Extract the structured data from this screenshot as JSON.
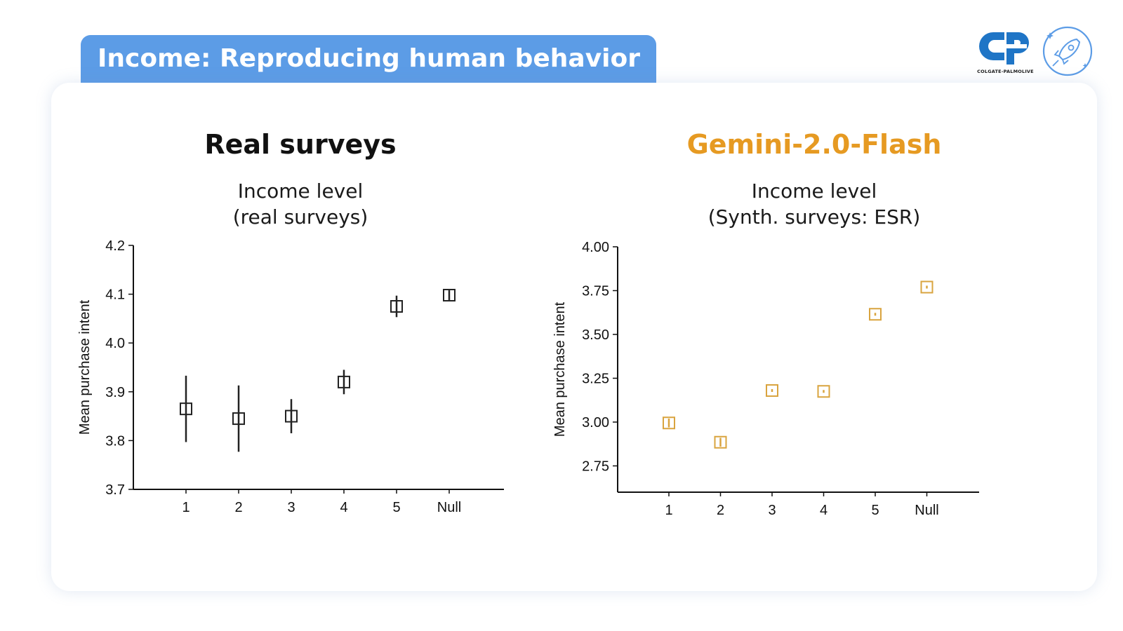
{
  "header": {
    "title": "Income: Reproducing human behavior"
  },
  "logos": {
    "colgate_text": "COLGATE-PALMOLIVE"
  },
  "colors": {
    "header_bg": "#5c9ce6",
    "accent_gemini": "#e69a22",
    "real_marker": "#222222",
    "gemini_marker": "#d9a43f"
  },
  "panels": {
    "left": {
      "title": "Real surveys",
      "subtitle_line1": "Income level",
      "subtitle_line2": "(real surveys)"
    },
    "right": {
      "title": "Gemini-2.0-Flash",
      "subtitle_line1": "Income level",
      "subtitle_line2": "(Synth. surveys: ESR)"
    }
  },
  "chart_data": [
    {
      "type": "scatter",
      "title": "Income level (real surveys)",
      "xlabel": "",
      "ylabel": "Mean purchase intent",
      "categories": [
        "1",
        "2",
        "3",
        "4",
        "5",
        "Null"
      ],
      "values": [
        3.865,
        3.845,
        3.85,
        3.92,
        4.075,
        4.098
      ],
      "err_low": [
        3.797,
        3.777,
        3.815,
        3.895,
        4.053,
        4.088
      ],
      "err_high": [
        3.933,
        3.913,
        3.885,
        3.945,
        4.097,
        4.108
      ],
      "ylim": [
        3.7,
        4.2
      ],
      "yticks": [
        3.7,
        3.8,
        3.9,
        4.0,
        4.1,
        4.2
      ],
      "ytick_labels": [
        "3.7",
        "3.8",
        "3.9",
        "4.0",
        "4.1",
        "4.2"
      ],
      "marker": "open-square",
      "color": "#222222",
      "grid": false
    },
    {
      "type": "scatter",
      "title": "Income level (Synth. surveys: ESR)",
      "xlabel": "",
      "ylabel": "Mean purchase intent",
      "categories": [
        "1",
        "2",
        "3",
        "4",
        "5",
        "Null"
      ],
      "values": [
        2.995,
        2.885,
        3.18,
        3.175,
        3.615,
        3.77
      ],
      "err_low": [
        2.97,
        2.86,
        3.172,
        3.167,
        3.607,
        3.762
      ],
      "err_high": [
        3.02,
        2.91,
        3.188,
        3.183,
        3.623,
        3.778
      ],
      "ylim": [
        2.6,
        4.0
      ],
      "yticks": [
        2.75,
        3.0,
        3.25,
        3.5,
        3.75,
        4.0
      ],
      "ytick_labels": [
        "2.75",
        "3.00",
        "3.25",
        "3.50",
        "3.75",
        "4.00"
      ],
      "marker": "open-square",
      "color": "#d9a43f",
      "grid": false
    }
  ]
}
